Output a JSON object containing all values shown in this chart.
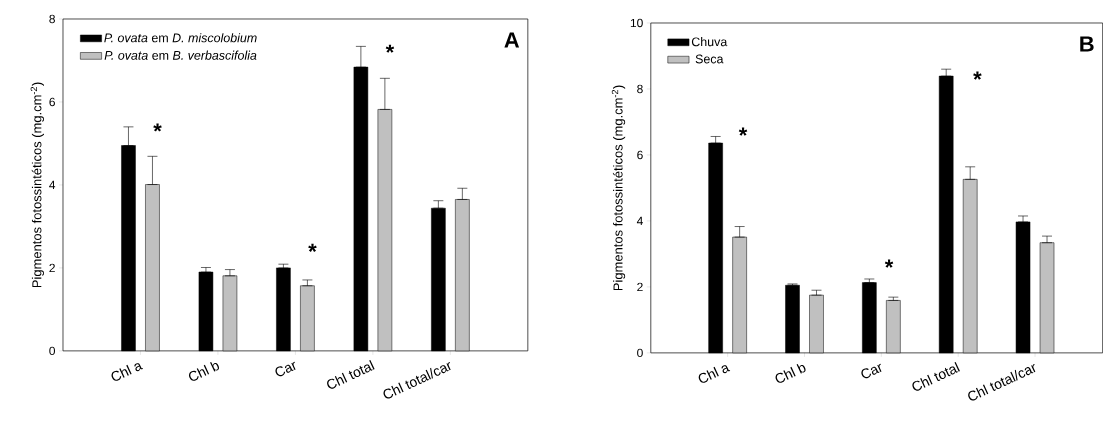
{
  "chart_data": [
    {
      "type": "bar",
      "categories": [
        "Chl a",
        "Chl b",
        "Car",
        "Chl total",
        "Chl total/car"
      ],
      "ylabel": "Pigmentos fotossintéticos (mg.cm$^{-2}$)",
      "ylim": [
        0,
        8
      ],
      "yticks": [
        0,
        2,
        4,
        6,
        8
      ],
      "legend": "top left",
      "grid": false,
      "series": [
        {
          "name": "*P. ovata* em *D. miscolobium*",
          "color": "#000000",
          "values": [
            4.95,
            1.9,
            2.0,
            6.84,
            3.44
          ],
          "errors": [
            [
              4.95,
              5.4
            ],
            [
              1.9,
              2.01
            ],
            [
              2.0,
              2.09
            ],
            [
              6.84,
              7.34
            ],
            [
              3.44,
              3.62
            ]
          ]
        },
        {
          "name": "*P. ovata* em *B. verbascifolia*",
          "color": "#c0c0c0",
          "values": [
            4.01,
            1.81,
            1.57,
            5.82,
            3.65
          ],
          "errors": [
            [
              4.01,
              4.69
            ],
            [
              1.81,
              1.96
            ],
            [
              1.57,
              1.71
            ],
            [
              5.82,
              6.57
            ],
            [
              3.65,
              3.92
            ]
          ]
        }
      ],
      "annotations": [
        "A",
        "*",
        "*",
        "*"
      ]
    },
    {
      "type": "bar",
      "categories": [
        "Chl a",
        "Chl b",
        "Car",
        "Chl total",
        "Chl total/car"
      ],
      "ylabel": "Pigmentos fotossintéticos (mg.cm$^{-2}$)",
      "ylim": [
        0,
        10
      ],
      "yticks": [
        0,
        2,
        4,
        6,
        8,
        10
      ],
      "legend": "top left",
      "grid": false,
      "series": [
        {
          "name": "Chuva",
          "color": "#000000",
          "values": [
            6.36,
            2.05,
            2.13,
            8.39,
            3.97
          ],
          "errors": [
            [
              6.36,
              6.56
            ],
            [
              2.05,
              2.09
            ],
            [
              2.13,
              2.24
            ],
            [
              8.39,
              8.6
            ],
            [
              3.97,
              4.15
            ]
          ]
        },
        {
          "name": "Seca",
          "color": "#c0c0c0",
          "values": [
            3.51,
            1.75,
            1.59,
            5.26,
            3.34
          ],
          "errors": [
            [
              3.51,
              3.83
            ],
            [
              1.75,
              1.9
            ],
            [
              1.59,
              1.69
            ],
            [
              5.26,
              5.64
            ],
            [
              3.34,
              3.54
            ]
          ]
        }
      ],
      "annotations": [
        "B",
        "*",
        "*",
        "*"
      ]
    }
  ]
}
